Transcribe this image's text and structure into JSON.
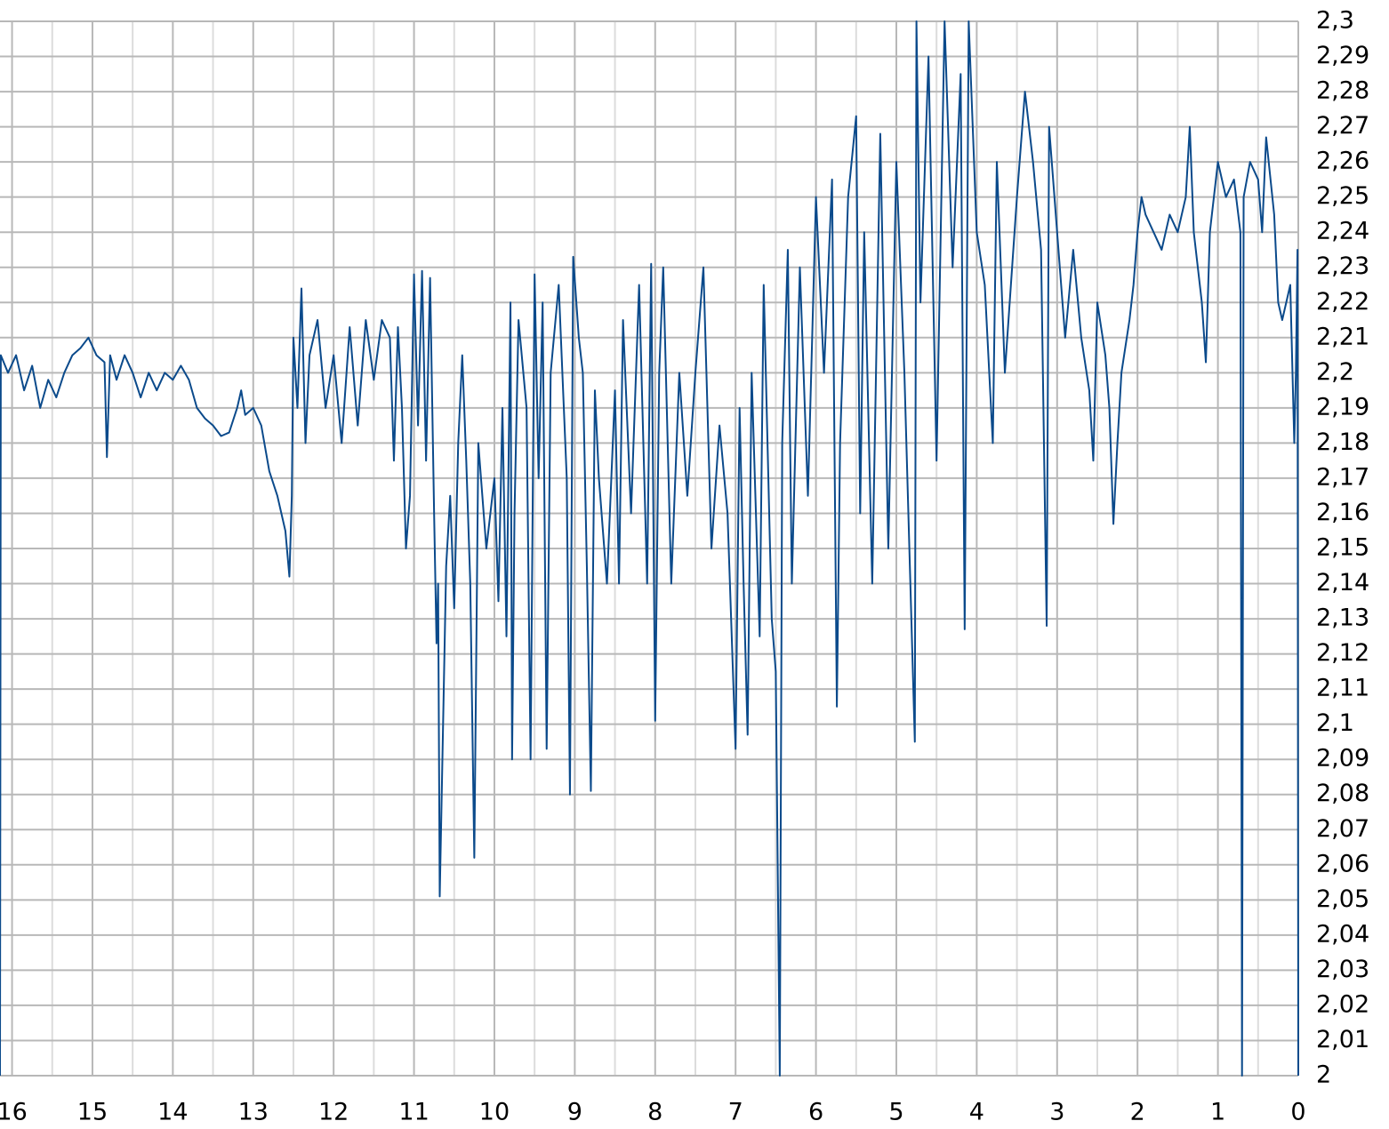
{
  "chart_data": {
    "type": "line",
    "x": [
      16.15,
      16.14,
      16.05,
      15.95,
      15.85,
      15.75,
      15.65,
      15.55,
      15.45,
      15.35,
      15.25,
      15.15,
      15.05,
      14.95,
      14.85,
      14.82,
      14.78,
      14.7,
      14.6,
      14.5,
      14.4,
      14.3,
      14.2,
      14.1,
      14.0,
      13.9,
      13.8,
      13.7,
      13.6,
      13.5,
      13.4,
      13.3,
      13.2,
      13.15,
      13.1,
      13.0,
      12.9,
      12.8,
      12.7,
      12.6,
      12.55,
      12.52,
      12.5,
      12.45,
      12.4,
      12.35,
      12.3,
      12.2,
      12.1,
      12.0,
      11.9,
      11.8,
      11.7,
      11.6,
      11.5,
      11.4,
      11.3,
      11.25,
      11.2,
      11.15,
      11.1,
      11.05,
      11.0,
      10.95,
      10.9,
      10.85,
      10.8,
      10.75,
      10.72,
      10.7,
      10.68,
      10.6,
      10.55,
      10.5,
      10.45,
      10.4,
      10.35,
      10.3,
      10.25,
      10.2,
      10.1,
      10.0,
      9.95,
      9.9,
      9.85,
      9.8,
      9.78,
      9.75,
      9.7,
      9.6,
      9.55,
      9.5,
      9.45,
      9.4,
      9.35,
      9.3,
      9.2,
      9.1,
      9.06,
      9.02,
      8.95,
      8.9,
      8.85,
      8.8,
      8.75,
      8.7,
      8.6,
      8.5,
      8.45,
      8.4,
      8.3,
      8.2,
      8.1,
      8.05,
      8.0,
      7.95,
      7.9,
      7.8,
      7.7,
      7.6,
      7.5,
      7.4,
      7.3,
      7.2,
      7.1,
      7.0,
      6.95,
      6.9,
      6.85,
      6.8,
      6.7,
      6.65,
      6.55,
      6.5,
      6.45,
      6.42,
      6.35,
      6.3,
      6.2,
      6.1,
      6.0,
      5.9,
      5.8,
      5.74,
      5.7,
      5.6,
      5.5,
      5.45,
      5.4,
      5.3,
      5.2,
      5.1,
      5.0,
      4.9,
      4.77,
      4.75,
      4.7,
      4.6,
      4.5,
      4.4,
      4.3,
      4.2,
      4.15,
      4.1,
      4.0,
      3.9,
      3.8,
      3.75,
      3.65,
      3.5,
      3.4,
      3.3,
      3.2,
      3.13,
      3.1,
      3.0,
      2.9,
      2.8,
      2.7,
      2.6,
      2.55,
      2.5,
      2.4,
      2.35,
      2.3,
      2.25,
      2.2,
      2.1,
      2.05,
      2.0,
      1.95,
      1.9,
      1.8,
      1.7,
      1.6,
      1.5,
      1.4,
      1.35,
      1.3,
      1.2,
      1.15,
      1.1,
      1.0,
      0.9,
      0.8,
      0.72,
      0.7,
      0.68,
      0.6,
      0.5,
      0.45,
      0.4,
      0.3,
      0.25,
      0.2,
      0.1,
      0.05,
      0.03,
      0.01,
      0.0
    ],
    "values": [
      2.0,
      2.205,
      2.2,
      2.205,
      2.195,
      2.202,
      2.19,
      2.198,
      2.193,
      2.2,
      2.205,
      2.207,
      2.21,
      2.205,
      2.203,
      2.176,
      2.205,
      2.198,
      2.205,
      2.2,
      2.193,
      2.2,
      2.195,
      2.2,
      2.198,
      2.202,
      2.198,
      2.19,
      2.187,
      2.185,
      2.182,
      2.183,
      2.19,
      2.195,
      2.188,
      2.19,
      2.185,
      2.172,
      2.165,
      2.155,
      2.142,
      2.165,
      2.21,
      2.19,
      2.224,
      2.18,
      2.205,
      2.215,
      2.19,
      2.205,
      2.18,
      2.213,
      2.185,
      2.215,
      2.198,
      2.215,
      2.21,
      2.175,
      2.213,
      2.19,
      2.15,
      2.165,
      2.228,
      2.185,
      2.229,
      2.175,
      2.227,
      2.16,
      2.123,
      2.14,
      2.051,
      2.145,
      2.165,
      2.133,
      2.18,
      2.205,
      2.175,
      2.14,
      2.062,
      2.18,
      2.15,
      2.17,
      2.135,
      2.19,
      2.125,
      2.22,
      2.09,
      2.16,
      2.215,
      2.19,
      2.09,
      2.228,
      2.17,
      2.22,
      2.093,
      2.2,
      2.225,
      2.17,
      2.08,
      2.233,
      2.21,
      2.2,
      2.145,
      2.081,
      2.195,
      2.17,
      2.14,
      2.195,
      2.14,
      2.215,
      2.16,
      2.225,
      2.14,
      2.231,
      2.101,
      2.2,
      2.23,
      2.14,
      2.2,
      2.165,
      2.2,
      2.23,
      2.15,
      2.185,
      2.16,
      2.093,
      2.19,
      2.14,
      2.097,
      2.2,
      2.125,
      2.225,
      2.13,
      2.115,
      2.0,
      2.18,
      2.235,
      2.14,
      2.23,
      2.165,
      2.25,
      2.2,
      2.255,
      2.105,
      2.18,
      2.25,
      2.273,
      2.16,
      2.24,
      2.14,
      2.268,
      2.15,
      2.26,
      2.2,
      2.095,
      2.3,
      2.22,
      2.29,
      2.175,
      2.3,
      2.23,
      2.285,
      2.127,
      2.3,
      2.24,
      2.225,
      2.18,
      2.26,
      2.2,
      2.25,
      2.28,
      2.26,
      2.235,
      2.128,
      2.27,
      2.24,
      2.21,
      2.235,
      2.21,
      2.195,
      2.175,
      2.22,
      2.205,
      2.19,
      2.157,
      2.18,
      2.2,
      2.215,
      2.225,
      2.24,
      2.25,
      2.245,
      2.24,
      2.235,
      2.245,
      2.24,
      2.25,
      2.27,
      2.24,
      2.22,
      2.203,
      2.24,
      2.26,
      2.25,
      2.255,
      2.24,
      2.0,
      2.25,
      2.26,
      2.255,
      2.24,
      2.267,
      2.245,
      2.22,
      2.215,
      2.225,
      2.18,
      2.2,
      2.235,
      2.0
    ],
    "color": "#0b4a8b",
    "xlim": [
      16.15,
      0
    ],
    "xticks": [
      16,
      15,
      14,
      13,
      12,
      11,
      10,
      9,
      8,
      7,
      6,
      5,
      4,
      3,
      2,
      1,
      0
    ],
    "xminor_ticks": [
      15.5,
      14.5,
      13.5,
      12.5,
      11.5,
      10.5,
      9.5,
      8.5,
      7.5,
      6.5,
      5.5,
      4.5,
      3.5,
      2.5,
      1.5,
      0.5
    ],
    "ylim": [
      2.0,
      2.3
    ],
    "yticks": [
      {
        "value": 2.3,
        "label": "2,3"
      },
      {
        "value": 2.29,
        "label": "2,29"
      },
      {
        "value": 2.28,
        "label": "2,28"
      },
      {
        "value": 2.27,
        "label": "2,27"
      },
      {
        "value": 2.26,
        "label": "2,26"
      },
      {
        "value": 2.25,
        "label": "2,25"
      },
      {
        "value": 2.24,
        "label": "2,24"
      },
      {
        "value": 2.23,
        "label": "2,23"
      },
      {
        "value": 2.22,
        "label": "2,22"
      },
      {
        "value": 2.21,
        "label": "2,21"
      },
      {
        "value": 2.2,
        "label": "2,2"
      },
      {
        "value": 2.19,
        "label": "2,19"
      },
      {
        "value": 2.18,
        "label": "2,18"
      },
      {
        "value": 2.17,
        "label": "2,17"
      },
      {
        "value": 2.16,
        "label": "2,16"
      },
      {
        "value": 2.15,
        "label": "2,15"
      },
      {
        "value": 2.14,
        "label": "2,14"
      },
      {
        "value": 2.13,
        "label": "2,13"
      },
      {
        "value": 2.12,
        "label": "2,12"
      },
      {
        "value": 2.11,
        "label": "2,11"
      },
      {
        "value": 2.1,
        "label": "2,1"
      },
      {
        "value": 2.09,
        "label": "2,09"
      },
      {
        "value": 2.08,
        "label": "2,08"
      },
      {
        "value": 2.07,
        "label": "2,07"
      },
      {
        "value": 2.06,
        "label": "2,06"
      },
      {
        "value": 2.05,
        "label": "2,05"
      },
      {
        "value": 2.04,
        "label": "2,04"
      },
      {
        "value": 2.03,
        "label": "2,03"
      },
      {
        "value": 2.02,
        "label": "2,02"
      },
      {
        "value": 2.01,
        "label": "2,01"
      },
      {
        "value": 2,
        "label": "2"
      }
    ],
    "grid": true
  }
}
